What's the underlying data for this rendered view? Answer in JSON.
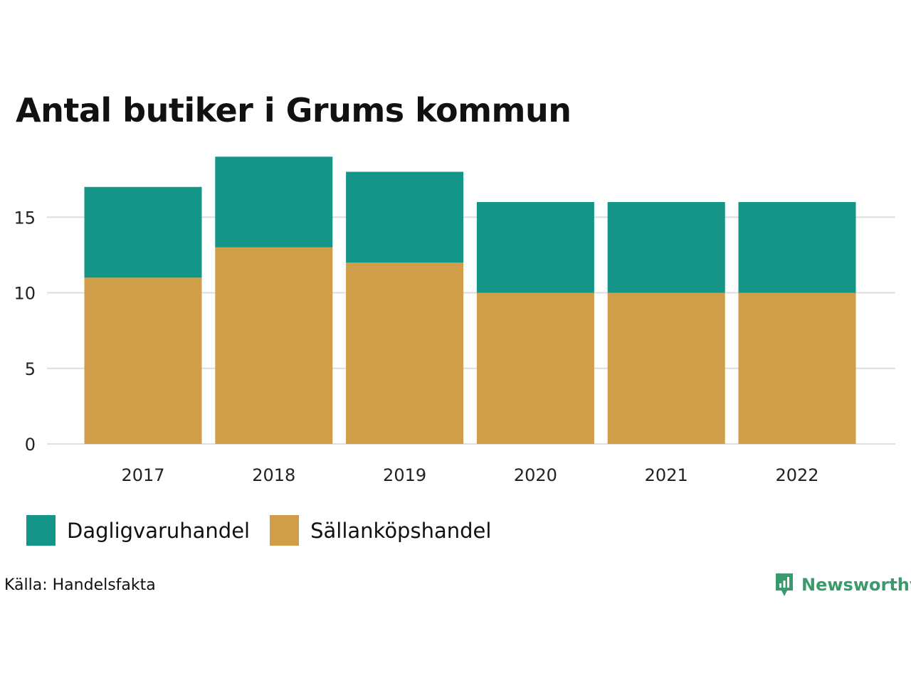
{
  "chart_data": {
    "type": "bar",
    "stacked": true,
    "title": "Antal butiker i Grums kommun",
    "categories": [
      "2017",
      "2018",
      "2019",
      "2020",
      "2021",
      "2022"
    ],
    "series": [
      {
        "name": "Sällanköpshandel",
        "values": [
          11,
          13,
          12,
          10,
          10,
          10
        ],
        "color": "#D09E48"
      },
      {
        "name": "Dagligvaruhandel",
        "values": [
          6,
          6,
          6,
          6,
          6,
          6
        ],
        "color": "#149588"
      }
    ],
    "yticks": [
      0,
      5,
      10,
      15
    ],
    "ylim": [
      0,
      19
    ],
    "grid": true,
    "legend_position": "bottom-left"
  },
  "legend": [
    {
      "label": "Dagligvaruhandel",
      "color": "#149588"
    },
    {
      "label": "Sällanköpshandel",
      "color": "#D09E48"
    }
  ],
  "source": "Källa: Handelsfakta",
  "logo": {
    "text": "Newsworthy",
    "color": "#3a9a6c",
    "icon": "newsworthy-chart-bubble-icon"
  }
}
